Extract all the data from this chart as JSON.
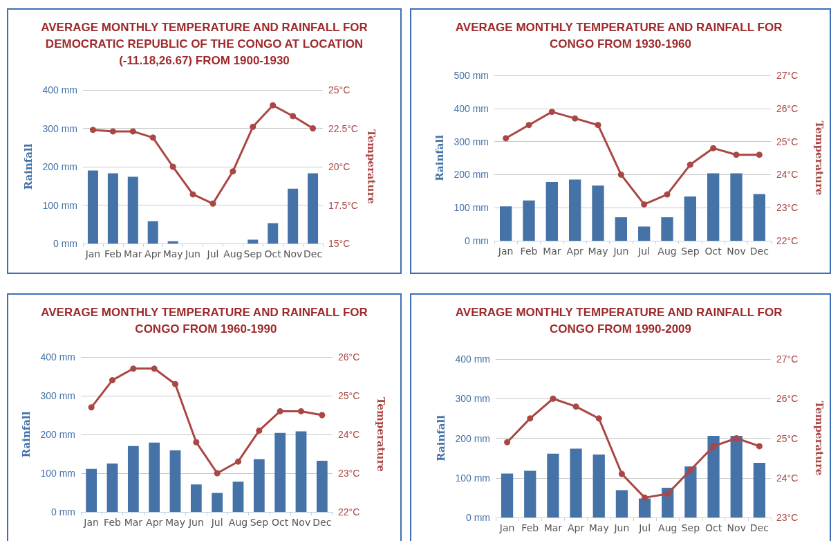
{
  "chart_data": [
    {
      "type": "bar",
      "title": "AVERAGE MONTHLY TEMPERATURE AND RAINFALL FOR DEMOCRATIC REPUBLIC OF THE CONGO AT LOCATION (-11.18,26.67) FROM 1900-1930",
      "ylabel": "Rainfall",
      "y2label": "Temperature",
      "categories": [
        "Jan",
        "Feb",
        "Mar",
        "Apr",
        "May",
        "Jun",
        "Jul",
        "Aug",
        "Sep",
        "Oct",
        "Nov",
        "Dec"
      ],
      "series": [
        {
          "color": "#4572a7",
          "values": [
            190,
            183,
            174,
            58,
            6,
            0,
            0,
            0,
            10,
            53,
            143,
            183
          ]
        },
        {
          "type": "line",
          "axis": "y2",
          "color": "#aa4643",
          "values": [
            22.4,
            22.3,
            22.3,
            21.9,
            20.0,
            18.2,
            17.6,
            19.7,
            22.6,
            24.0,
            23.3,
            22.5
          ]
        }
      ],
      "ylim": [
        0,
        400
      ],
      "yticks": [
        {
          "value": 0,
          "label": "0 mm"
        },
        {
          "value": 100,
          "label": "100 mm"
        },
        {
          "value": 200,
          "label": "200 mm"
        },
        {
          "value": 300,
          "label": "300 mm"
        },
        {
          "value": 400,
          "label": "400 mm"
        }
      ],
      "y2lim": [
        15,
        25
      ],
      "y2ticks": [
        {
          "value": 15,
          "label": "15°C"
        },
        {
          "value": 17.5,
          "label": "17.5°C"
        },
        {
          "value": 20,
          "label": "20°C"
        },
        {
          "value": 22.5,
          "label": "22.5°C"
        },
        {
          "value": 25,
          "label": "25°C"
        }
      ],
      "grid": "y",
      "marker": "circle"
    },
    {
      "type": "bar",
      "title": "AVERAGE MONTHLY TEMPERATURE AND RAINFALL FOR CONGO FROM 1930-1960",
      "ylabel": "Rainfall",
      "y2label": "Temperature",
      "categories": [
        "Jan",
        "Feb",
        "Mar",
        "Apr",
        "May",
        "Jun",
        "Jul",
        "Aug",
        "Sep",
        "Oct",
        "Nov",
        "Dec"
      ],
      "series": [
        {
          "color": "#4572a7",
          "values": [
            104,
            122,
            178,
            185,
            167,
            71,
            43,
            71,
            134,
            204,
            204,
            141
          ]
        },
        {
          "type": "line",
          "axis": "y2",
          "color": "#aa4643",
          "values": [
            25.1,
            25.5,
            25.9,
            25.7,
            25.5,
            24.0,
            23.1,
            23.4,
            24.3,
            24.8,
            24.6,
            24.6
          ]
        }
      ],
      "ylim": [
        0,
        500
      ],
      "yticks": [
        {
          "value": 0,
          "label": "0 mm"
        },
        {
          "value": 100,
          "label": "100 mm"
        },
        {
          "value": 200,
          "label": "200 mm"
        },
        {
          "value": 300,
          "label": "300 mm"
        },
        {
          "value": 400,
          "label": "400 mm"
        },
        {
          "value": 500,
          "label": "500 mm"
        }
      ],
      "y2lim": [
        22,
        27
      ],
      "y2ticks": [
        {
          "value": 22,
          "label": "22°C"
        },
        {
          "value": 23,
          "label": "23°C"
        },
        {
          "value": 24,
          "label": "24°C"
        },
        {
          "value": 25,
          "label": "25°C"
        },
        {
          "value": 26,
          "label": "26°C"
        },
        {
          "value": 27,
          "label": "27°C"
        }
      ],
      "grid": "y",
      "marker": "circle"
    },
    {
      "type": "bar",
      "title": "AVERAGE MONTHLY TEMPERATURE AND RAINFALL FOR CONGO FROM 1960-1990",
      "ylabel": "Rainfall",
      "y2label": "Temperature",
      "categories": [
        "Jan",
        "Feb",
        "Mar",
        "Apr",
        "May",
        "Jun",
        "Jul",
        "Aug",
        "Sep",
        "Oct",
        "Nov",
        "Dec"
      ],
      "series": [
        {
          "color": "#4572a7",
          "values": [
            111,
            125,
            170,
            179,
            159,
            71,
            49,
            78,
            136,
            204,
            208,
            132
          ]
        },
        {
          "type": "line",
          "axis": "y2",
          "color": "#aa4643",
          "values": [
            24.7,
            25.4,
            25.7,
            25.7,
            25.3,
            23.8,
            23.0,
            23.3,
            24.1,
            24.6,
            24.6,
            24.5
          ]
        }
      ],
      "ylim": [
        0,
        400
      ],
      "yticks": [
        {
          "value": 0,
          "label": "0 mm"
        },
        {
          "value": 100,
          "label": "100 mm"
        },
        {
          "value": 200,
          "label": "200 mm"
        },
        {
          "value": 300,
          "label": "300 mm"
        },
        {
          "value": 400,
          "label": "400 mm"
        }
      ],
      "y2lim": [
        22,
        26
      ],
      "y2ticks": [
        {
          "value": 22,
          "label": "22°C"
        },
        {
          "value": 23,
          "label": "23°C"
        },
        {
          "value": 24,
          "label": "24°C"
        },
        {
          "value": 25,
          "label": "25°C"
        },
        {
          "value": 26,
          "label": "26°C"
        }
      ],
      "grid": "y",
      "marker": "circle"
    },
    {
      "type": "bar",
      "title": "AVERAGE MONTHLY TEMPERATURE AND RAINFALL FOR CONGO FROM 1990-2009",
      "ylabel": "Rainfall",
      "y2label": "Temperature",
      "categories": [
        "Jan",
        "Feb",
        "Mar",
        "Apr",
        "May",
        "Jun",
        "Jul",
        "Aug",
        "Sep",
        "Oct",
        "Nov",
        "Dec"
      ],
      "series": [
        {
          "color": "#4572a7",
          "values": [
            111,
            118,
            161,
            174,
            159,
            69,
            48,
            75,
            129,
            206,
            206,
            138
          ]
        },
        {
          "type": "line",
          "axis": "y2",
          "color": "#aa4643",
          "values": [
            24.9,
            25.5,
            26.0,
            25.8,
            25.5,
            24.1,
            23.5,
            23.6,
            24.2,
            24.8,
            25.0,
            24.8
          ]
        }
      ],
      "ylim": [
        0,
        400
      ],
      "yticks": [
        {
          "value": 0,
          "label": "0 mm"
        },
        {
          "value": 100,
          "label": "100 mm"
        },
        {
          "value": 200,
          "label": "200 mm"
        },
        {
          "value": 300,
          "label": "300 mm"
        },
        {
          "value": 400,
          "label": "400 mm"
        }
      ],
      "y2lim": [
        23,
        27
      ],
      "y2ticks": [
        {
          "value": 23,
          "label": "23°C"
        },
        {
          "value": 24,
          "label": "24°C"
        },
        {
          "value": 25,
          "label": "25°C"
        },
        {
          "value": 26,
          "label": "26°C"
        },
        {
          "value": 27,
          "label": "27°C"
        }
      ],
      "grid": "y",
      "marker": "circle"
    }
  ]
}
